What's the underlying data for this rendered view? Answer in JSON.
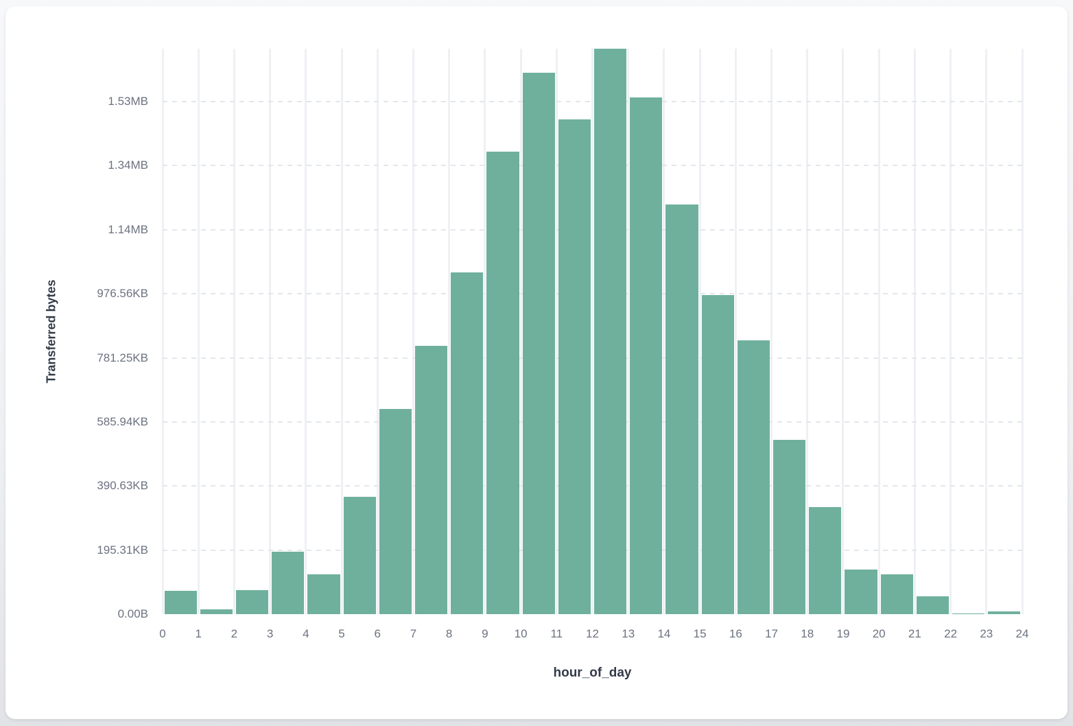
{
  "colors": {
    "bar": "#6fb09c",
    "vertical_grid": "#eef0f4",
    "horizontal_grid": "#e3e6eb",
    "tick_text": "#6b7280",
    "axis_title_text": "#333b48",
    "card_background": "#ffffff"
  },
  "chart_data": {
    "type": "bar",
    "title": "",
    "xlabel": "hour_of_day",
    "ylabel": "Transferred bytes",
    "categories": [
      0,
      1,
      2,
      3,
      4,
      5,
      6,
      7,
      8,
      9,
      10,
      11,
      12,
      13,
      14,
      15,
      16,
      17,
      18,
      19,
      20,
      21,
      22,
      23
    ],
    "values": [
      73000,
      15000,
      76000,
      194000,
      125000,
      367000,
      641000,
      838000,
      1066000,
      1443000,
      1691000,
      1544000,
      1765000,
      1613000,
      1278000,
      996000,
      855000,
      544000,
      334000,
      139000,
      124000,
      56000,
      2000,
      9000
    ],
    "values_unit": "bytes",
    "x_tick_labels": [
      "0",
      "1",
      "2",
      "3",
      "4",
      "5",
      "6",
      "7",
      "8",
      "9",
      "10",
      "11",
      "12",
      "13",
      "14",
      "15",
      "16",
      "17",
      "18",
      "19",
      "20",
      "21",
      "22",
      "23",
      "24"
    ],
    "y_ticks": [
      {
        "label": "0.00B",
        "value": 0
      },
      {
        "label": "195.31KB",
        "value": 200000
      },
      {
        "label": "390.63KB",
        "value": 400000
      },
      {
        "label": "585.94KB",
        "value": 600000
      },
      {
        "label": "781.25KB",
        "value": 800000
      },
      {
        "label": "976.56KB",
        "value": 1000000
      },
      {
        "label": "1.14MB",
        "value": 1200000
      },
      {
        "label": "1.34MB",
        "value": 1400000
      },
      {
        "label": "1.53MB",
        "value": 1600000
      }
    ],
    "ylim": [
      0,
      1765000
    ],
    "grid": true,
    "legend": false
  }
}
